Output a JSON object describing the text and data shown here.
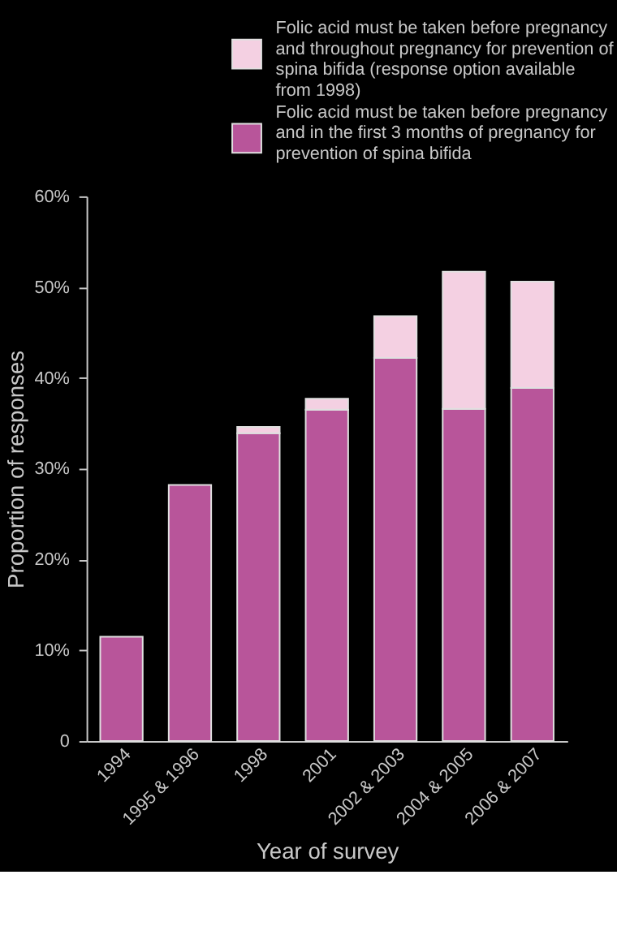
{
  "chart_data": {
    "type": "bar",
    "stacked": true,
    "xlabel": "Year of survey",
    "ylabel": "Proportion of responses",
    "categories": [
      "1994",
      "1995 & 1996",
      "1998",
      "2001",
      "2002 & 2003",
      "2004 & 2005",
      "2006 & 2007"
    ],
    "series": [
      {
        "name": "Folic acid must be taken before pregnancy and in the first 3 months of pregnancy for prevention of spina bifida",
        "color": "#b8559a",
        "values": [
          11.5,
          28.2,
          33.9,
          36.5,
          42.2,
          36.6,
          38.9
        ]
      },
      {
        "name": "Folic acid must be taken before pregnancy and throughout pregnancy for prevention of spina bifida (response option available from 1998)",
        "color": "#f4d0e2",
        "values": [
          null,
          null,
          0.7,
          1.2,
          4.6,
          15.1,
          11.7
        ]
      }
    ],
    "ylim": [
      0,
      60
    ],
    "yticks": [
      0,
      {
        "value": 10,
        "label": "10%"
      },
      {
        "value": 20,
        "label": "20%"
      },
      {
        "value": 30,
        "label": "30%"
      },
      {
        "value": 40,
        "label": "40%"
      },
      {
        "value": 50,
        "label": "50%"
      },
      {
        "value": 60,
        "label": "60%"
      }
    ],
    "grid": false,
    "legend": "top"
  }
}
